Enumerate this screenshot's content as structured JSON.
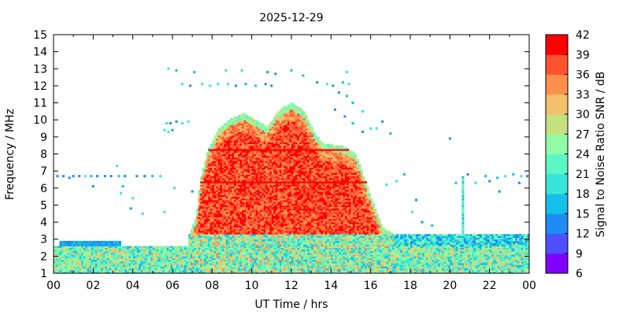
{
  "chart_data": {
    "type": "heatmap",
    "title": "2025-12-29",
    "xlabel": "UT Time / hrs",
    "ylabel": "Frequency / MHz",
    "colorbar_label": "Signal to Noise Ratio SNR / dB",
    "xlim": [
      0,
      24
    ],
    "ylim": [
      1,
      15
    ],
    "x_ticks": [
      "00",
      "02",
      "04",
      "06",
      "08",
      "10",
      "12",
      "14",
      "16",
      "18",
      "20",
      "22",
      "00"
    ],
    "y_ticks": [
      "1",
      "2",
      "3",
      "4",
      "5",
      "6",
      "7",
      "8",
      "9",
      "10",
      "11",
      "12",
      "13",
      "14",
      "15"
    ],
    "colorbar": {
      "min": 6,
      "max": 42,
      "ticks": [
        "6",
        "9",
        "12",
        "15",
        "18",
        "21",
        "24",
        "27",
        "30",
        "33",
        "36",
        "39",
        "42"
      ],
      "colors": [
        "#7f00ff",
        "#4f4ffd",
        "#1e8cf5",
        "#14bfe9",
        "#37e6d9",
        "#59f7c4",
        "#91fca5",
        "#c6e07f",
        "#f3c16b",
        "#ff8f4d",
        "#ff5330",
        "#ff0000"
      ]
    },
    "grid": false,
    "daytime_envelope": [
      [
        6.8,
        3.2
      ],
      [
        7.2,
        4.3
      ],
      [
        7.4,
        6.5
      ],
      [
        7.8,
        8.3
      ],
      [
        8.4,
        9.6
      ],
      [
        9.0,
        10.1
      ],
      [
        9.6,
        10.4
      ],
      [
        10.2,
        10.0
      ],
      [
        10.8,
        9.6
      ],
      [
        11.3,
        10.5
      ],
      [
        12.0,
        11.0
      ],
      [
        12.6,
        10.6
      ],
      [
        13.2,
        9.2
      ],
      [
        13.6,
        8.6
      ],
      [
        14.5,
        8.5
      ],
      [
        15.2,
        8.1
      ],
      [
        15.6,
        6.9
      ],
      [
        16.1,
        5.2
      ],
      [
        16.6,
        3.7
      ],
      [
        17.2,
        3.3
      ]
    ],
    "night_band": {
      "fmin": 1.0,
      "fmax": 2.6,
      "typical_snr": 22
    },
    "evening_band": {
      "x_start": 17.0,
      "x_end": 24.0,
      "fmin": 1.0,
      "fmax": 3.3,
      "typical_snr": 20
    },
    "sporadic_points": [
      [
        0.2,
        6.7
      ],
      [
        0.5,
        6.7
      ],
      [
        0.8,
        6.6
      ],
      [
        1.0,
        6.7
      ],
      [
        1.3,
        6.7
      ],
      [
        1.6,
        6.7
      ],
      [
        1.9,
        6.7
      ],
      [
        2.2,
        6.7
      ],
      [
        2.6,
        6.7
      ],
      [
        2.9,
        6.7
      ],
      [
        3.3,
        6.7
      ],
      [
        3.6,
        6.7
      ],
      [
        4.2,
        6.7
      ],
      [
        4.6,
        6.7
      ],
      [
        5.0,
        6.7
      ],
      [
        5.4,
        6.7
      ],
      [
        2.0,
        6.1
      ],
      [
        3.4,
        5.7
      ],
      [
        4.0,
        5.4
      ],
      [
        3.5,
        6.1
      ],
      [
        3.2,
        7.3
      ],
      [
        3.9,
        4.8
      ],
      [
        4.5,
        4.5
      ],
      [
        5.6,
        4.6
      ],
      [
        6.1,
        6.0
      ],
      [
        7.0,
        5.8
      ],
      [
        5.8,
        13.0
      ],
      [
        6.2,
        12.9
      ],
      [
        7.1,
        12.8
      ],
      [
        8.7,
        12.9
      ],
      [
        6.5,
        12.1
      ],
      [
        6.9,
        12.0
      ],
      [
        7.5,
        12.1
      ],
      [
        7.9,
        12.0
      ],
      [
        8.3,
        12.1
      ],
      [
        8.8,
        12.1
      ],
      [
        9.2,
        12.0
      ],
      [
        9.7,
        12.1
      ],
      [
        10.2,
        12.0
      ],
      [
        10.7,
        12.1
      ],
      [
        11.0,
        12.0
      ],
      [
        9.5,
        12.9
      ],
      [
        10.8,
        12.8
      ],
      [
        11.2,
        12.7
      ],
      [
        12.0,
        12.9
      ],
      [
        12.6,
        12.6
      ],
      [
        13.3,
        12.2
      ],
      [
        13.8,
        12.1
      ],
      [
        14.1,
        12.0
      ],
      [
        14.6,
        12.2
      ],
      [
        14.9,
        12.1
      ],
      [
        14.8,
        12.8
      ],
      [
        14.4,
        11.6
      ],
      [
        14.8,
        11.4
      ],
      [
        15.1,
        11.0
      ],
      [
        15.6,
        10.5
      ],
      [
        14.2,
        10.6
      ],
      [
        14.7,
        10.2
      ],
      [
        15.1,
        9.8
      ],
      [
        15.6,
        9.3
      ],
      [
        16.0,
        9.5
      ],
      [
        16.3,
        9.5
      ],
      [
        16.6,
        9.9
      ],
      [
        17.0,
        9.2
      ],
      [
        20.0,
        8.9
      ],
      [
        5.7,
        9.8
      ],
      [
        5.9,
        9.8
      ],
      [
        6.2,
        9.9
      ],
      [
        6.5,
        9.8
      ],
      [
        6.8,
        9.9
      ],
      [
        5.6,
        9.4
      ],
      [
        5.8,
        9.3
      ],
      [
        6.0,
        9.4
      ],
      [
        16.8,
        6.2
      ],
      [
        17.3,
        6.4
      ],
      [
        17.7,
        6.8
      ],
      [
        18.3,
        5.3
      ],
      [
        18.1,
        4.6
      ],
      [
        20.3,
        6.3
      ],
      [
        20.9,
        6.8
      ],
      [
        21.3,
        6.3
      ],
      [
        21.8,
        6.7
      ],
      [
        22.0,
        6.4
      ],
      [
        22.4,
        6.6
      ],
      [
        22.8,
        6.7
      ],
      [
        23.2,
        6.8
      ],
      [
        23.6,
        6.7
      ],
      [
        23.9,
        6.7
      ],
      [
        22.5,
        5.8
      ],
      [
        23.5,
        6.3
      ],
      [
        18.6,
        4.0
      ],
      [
        19.1,
        3.8
      ]
    ],
    "spike": {
      "x": 20.6,
      "fmin": 3.0,
      "fmax": 6.6
    }
  }
}
